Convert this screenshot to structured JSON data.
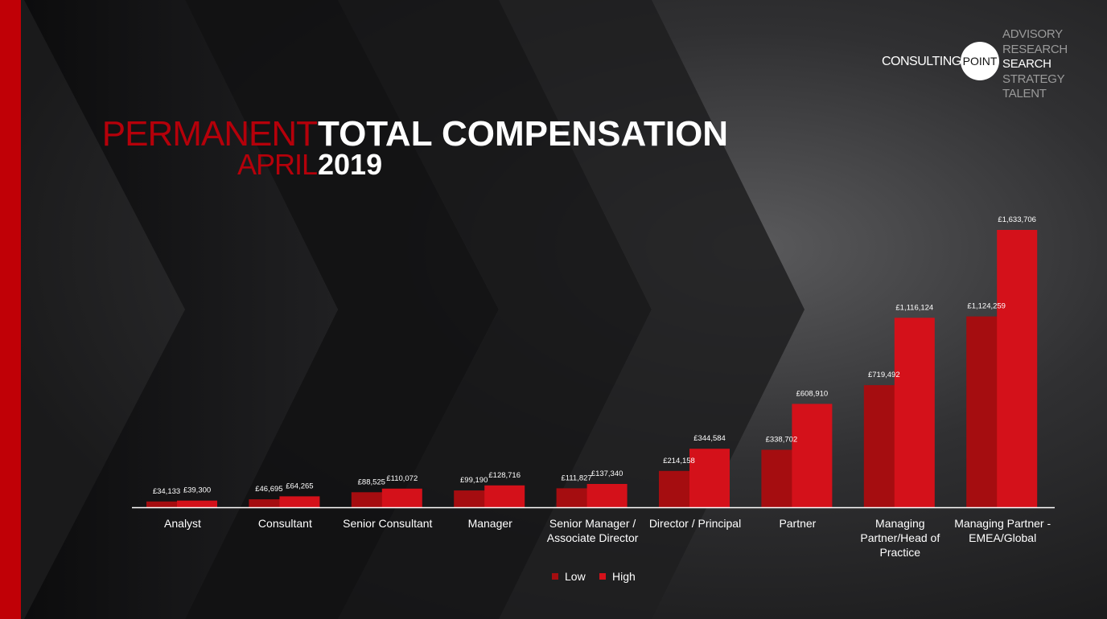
{
  "title": {
    "red_line1": "PERMANENT",
    "red_line2": "APRIL",
    "white_line1": "TOTAL COMPENSATION",
    "white_line2": "2019"
  },
  "logo": {
    "consulting": "CONSULTING",
    "point": "POINT",
    "services": [
      "ADVISORY",
      "RESEARCH",
      "SEARCH",
      "STRATEGY",
      "TALENT"
    ],
    "active_service": "SEARCH"
  },
  "colors": {
    "background": "#1b1b1c",
    "accent_red": "#c00006",
    "low_series": "#a50d10",
    "high_series": "#d4111a"
  },
  "chart_data": {
    "type": "bar",
    "categories": [
      [
        "Analyst"
      ],
      [
        "Consultant"
      ],
      [
        "Senior Consultant"
      ],
      [
        "Manager"
      ],
      [
        "Senior Manager /",
        "Associate Director"
      ],
      [
        "Director / Principal"
      ],
      [
        "Partner"
      ],
      [
        "Managing",
        "Partner/Head of",
        "Practice"
      ],
      [
        "Managing Partner -",
        "EMEA/Global"
      ]
    ],
    "series": [
      {
        "name": "Low",
        "values": [
          34133,
          46695,
          88525,
          99190,
          111827,
          214158,
          338702,
          719492,
          1124259
        ],
        "labels": [
          "£34,133",
          "£46,695",
          "£88,525",
          "£99,190",
          "£111,827",
          "£214,158",
          "£338,702",
          "£719,492",
          "£1,124,259"
        ]
      },
      {
        "name": "High",
        "values": [
          39300,
          64265,
          110072,
          128716,
          137340,
          344584,
          608910,
          1116124,
          1633706
        ],
        "labels": [
          "£39,300",
          "£64,265",
          "£110,072",
          "£128,716",
          "£137,340",
          "£344,584",
          "£608,910",
          "£1,116,124",
          "£1,633,706"
        ]
      }
    ],
    "ylim": [
      0,
      1633706
    ],
    "grid": false,
    "legend_position": "bottom-center",
    "legend": [
      "Low",
      "High"
    ]
  }
}
